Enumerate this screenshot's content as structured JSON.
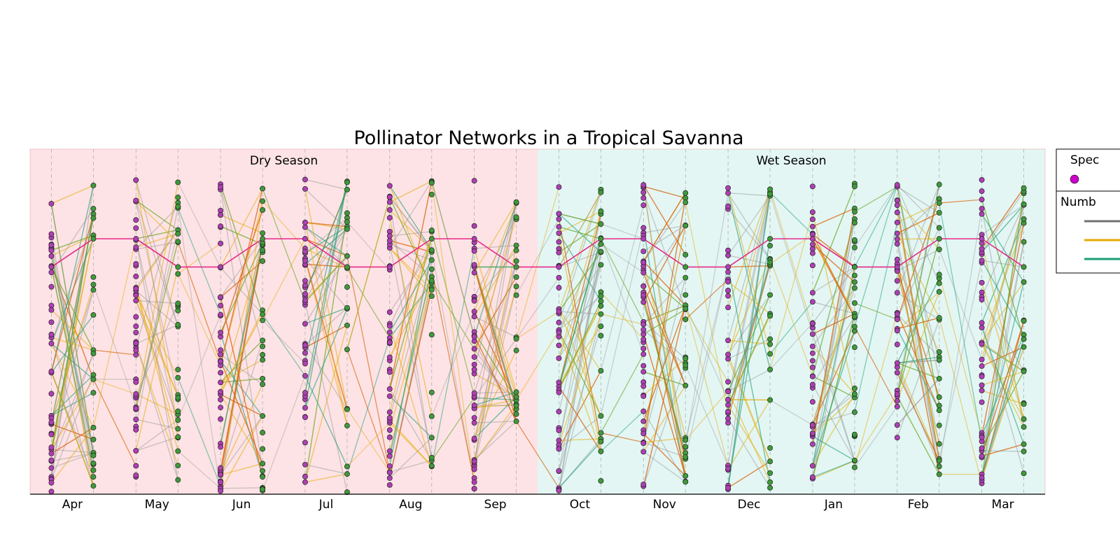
{
  "chart_data": {
    "type": "bipartite-network",
    "title": "Pollinator Networks in a Tropical Savanna",
    "months": [
      "Apr",
      "May",
      "Jun",
      "Jul",
      "Aug",
      "Sep",
      "Oct",
      "Nov",
      "Dec",
      "Jan",
      "Feb",
      "Mar"
    ],
    "seasons": [
      {
        "label": "Dry Season",
        "months": [
          "Apr",
          "May",
          "Jun",
          "Jul",
          "Aug",
          "Sep"
        ],
        "color": "#fde3e5"
      },
      {
        "label": "Wet Season",
        "months": [
          "Oct",
          "Nov",
          "Dec",
          "Jan",
          "Feb",
          "Mar"
        ],
        "color": "#e3f6f4"
      }
    ],
    "legend": {
      "species_title": "Spec",
      "species_marker_color": "#cc00cc",
      "number_title": "Numb",
      "number_colors": [
        "#707070",
        "#e6ab02",
        "#1b9e77"
      ]
    },
    "node_colors": {
      "pollinator": "#b03fb5",
      "plant": "#3f9a3a"
    },
    "link_colors": {
      "one": "#8c8c8c",
      "few": "#e6ab02",
      "many": "#1b9e77",
      "olive": "#66a61e",
      "brown": "#d95f02",
      "persistent": "#e7298a"
    },
    "persistent_path": [
      72,
      81,
      72,
      81,
      72,
      81,
      72,
      81,
      72,
      81,
      72,
      81
    ],
    "ylim": [
      0,
      100
    ],
    "grid": "vertical dashed per column"
  }
}
